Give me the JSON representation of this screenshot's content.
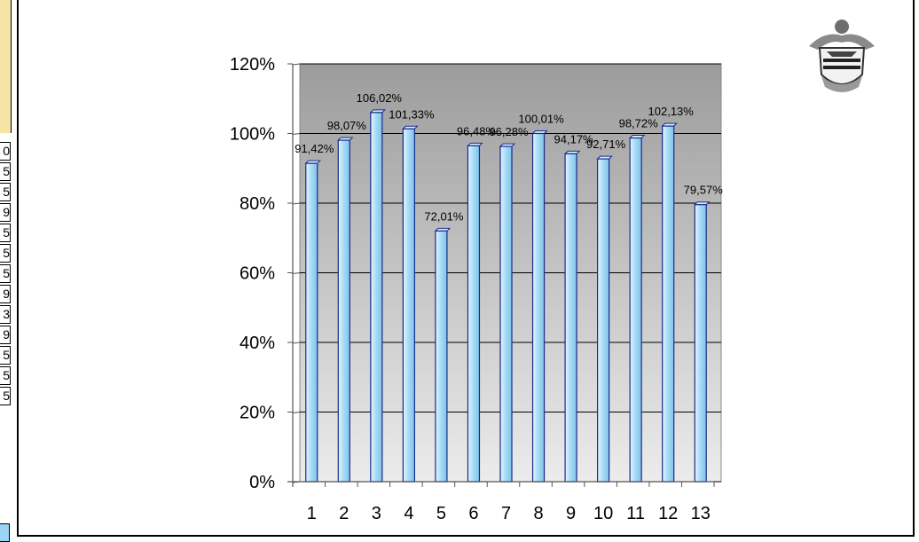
{
  "chart_data": {
    "type": "bar",
    "title": "",
    "xlabel": "",
    "ylabel": "",
    "categories": [
      "1",
      "2",
      "3",
      "4",
      "5",
      "6",
      "7",
      "8",
      "9",
      "10",
      "11",
      "12",
      "13"
    ],
    "values": [
      91.42,
      98.07,
      106.02,
      101.33,
      72.01,
      96.48,
      96.28,
      100.01,
      94.17,
      92.71,
      98.72,
      102.13,
      79.57
    ],
    "data_labels": [
      "91,42%",
      "98,07%",
      "106,02%",
      "101,33%",
      "72,01%",
      "96,48%",
      "96,28%",
      "100,01%",
      "94,17%",
      "92,71%",
      "98,72%",
      "102,13%",
      "79,57%"
    ],
    "ylim": [
      0,
      120
    ],
    "yticks": [
      0,
      20,
      40,
      60,
      80,
      100,
      120
    ],
    "ytick_labels": [
      "0%",
      "20%",
      "40%",
      "60%",
      "80%",
      "100%",
      "120%"
    ],
    "grid": true,
    "legend": "none"
  },
  "colors": {
    "bar_fill": "#a9dcf7",
    "bar_stroke": "#1b2a8a",
    "plot_bg_top": "#9c9c9c",
    "plot_bg_bottom": "#ececec",
    "gridline": "#000000"
  },
  "decor": {
    "crest_icon": "heraldic-crest-icon",
    "side_digits": [
      "0",
      "5",
      "5",
      "9",
      "5",
      "5",
      "5",
      "9",
      "3",
      "9",
      "5",
      "5",
      "5"
    ]
  }
}
